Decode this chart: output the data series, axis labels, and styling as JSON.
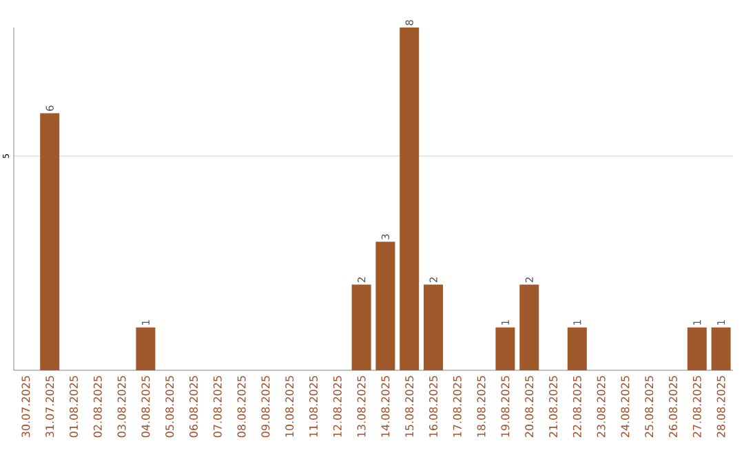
{
  "chart_data": {
    "type": "bar",
    "categories": [
      "30.07.2025",
      "31.07.2025",
      "01.08.2025",
      "02.08.2025",
      "03.08.2025",
      "04.08.2025",
      "05.08.2025",
      "06.08.2025",
      "07.08.2025",
      "08.08.2025",
      "09.08.2025",
      "10.08.2025",
      "11.08.2025",
      "12.08.2025",
      "13.08.2025",
      "14.08.2025",
      "15.08.2025",
      "16.08.2025",
      "17.08.2025",
      "18.08.2025",
      "19.08.2025",
      "20.08.2025",
      "21.08.2025",
      "22.08.2025",
      "23.08.2025",
      "24.08.2025",
      "25.08.2025",
      "26.08.2025",
      "27.08.2025",
      "28.08.2025"
    ],
    "values": [
      0,
      6,
      0,
      0,
      0,
      1,
      0,
      0,
      0,
      0,
      0,
      0,
      0,
      0,
      2,
      3,
      8,
      2,
      0,
      0,
      1,
      2,
      0,
      1,
      0,
      0,
      0,
      0,
      1,
      1
    ],
    "value_labels": [
      null,
      "6",
      null,
      null,
      null,
      "1",
      null,
      null,
      null,
      null,
      null,
      null,
      null,
      null,
      "2",
      "3",
      "8",
      "2",
      null,
      null,
      "1",
      "2",
      null,
      "1",
      null,
      null,
      null,
      null,
      "1",
      "1"
    ],
    "color": "#a0592a",
    "ylim": [
      0,
      8
    ],
    "yticks": [
      5
    ],
    "grid": true
  }
}
